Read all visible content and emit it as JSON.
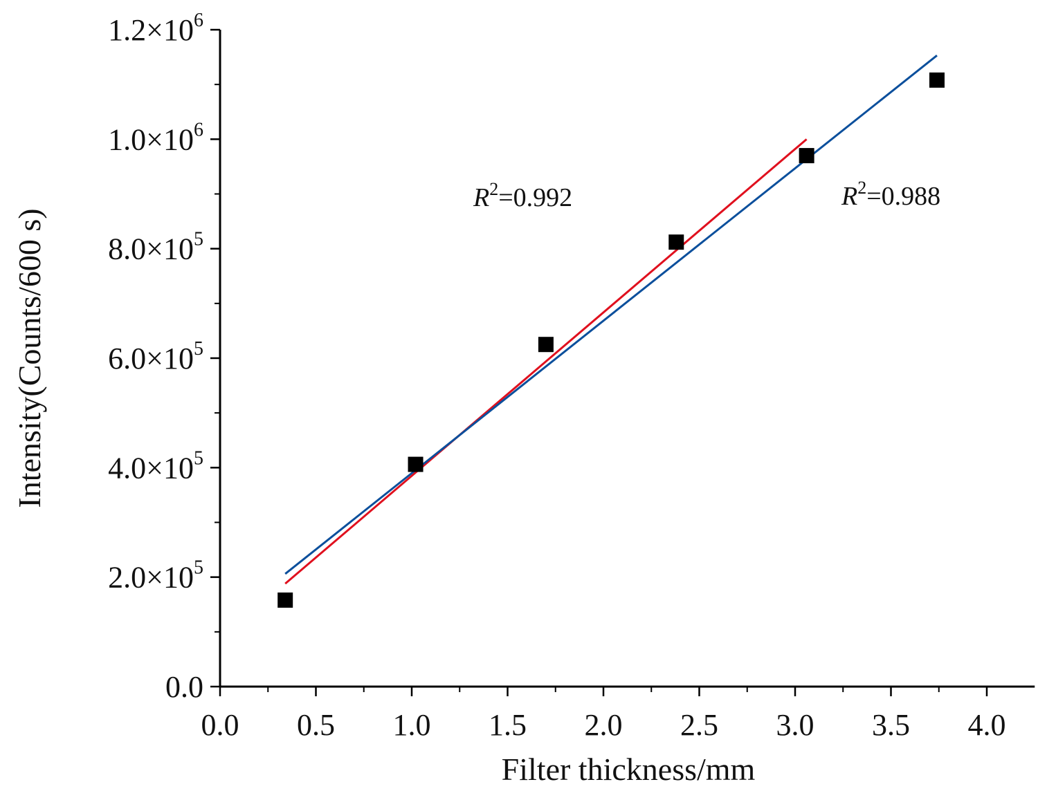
{
  "chart_data": {
    "type": "scatter",
    "title": "",
    "xlabel": "Filter thickness/mm",
    "ylabel": "Intensity(Counts/600 s)",
    "xlim": [
      0.0,
      4.25
    ],
    "ylim": [
      0,
      1200000
    ],
    "x_ticks": [
      0.0,
      0.5,
      1.0,
      1.5,
      2.0,
      2.5,
      3.0,
      3.5,
      4.0
    ],
    "x_tick_labels": [
      "0.0",
      "0.5",
      "1.0",
      "1.5",
      "2.0",
      "2.5",
      "3.0",
      "3.5",
      "4.0"
    ],
    "y_ticks": [
      {
        "value": 0,
        "mantissa": "0.0",
        "exp": ""
      },
      {
        "value": 200000,
        "mantissa": "2.0×10",
        "exp": "5"
      },
      {
        "value": 400000,
        "mantissa": "4.0×10",
        "exp": "5"
      },
      {
        "value": 600000,
        "mantissa": "6.0×10",
        "exp": "5"
      },
      {
        "value": 800000,
        "mantissa": "8.0×10",
        "exp": "5"
      },
      {
        "value": 1000000,
        "mantissa": "1.0×10",
        "exp": "6"
      },
      {
        "value": 1200000,
        "mantissa": "1.2×10",
        "exp": "6"
      }
    ],
    "grid": false,
    "points": [
      {
        "x": 0.34,
        "y": 158000
      },
      {
        "x": 1.02,
        "y": 406000
      },
      {
        "x": 1.7,
        "y": 625000
      },
      {
        "x": 2.38,
        "y": 812000
      },
      {
        "x": 3.06,
        "y": 970000
      },
      {
        "x": 3.74,
        "y": 1108000
      }
    ],
    "fits": [
      {
        "x": [
          0.34,
          3.06
        ],
        "y": [
          188000,
          1000000
        ],
        "color": "#e0101e",
        "r2_label": "=0.992"
      },
      {
        "x": [
          0.34,
          3.74
        ],
        "y": [
          206000,
          1153000
        ],
        "color": "#0b4f9c",
        "r2_label": "=0.988"
      }
    ],
    "annotation_prefix": "R",
    "annotation_sup": "2"
  }
}
